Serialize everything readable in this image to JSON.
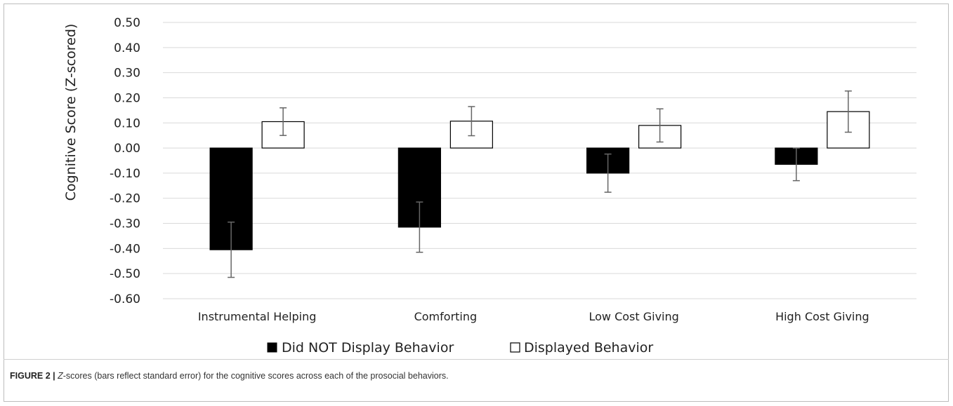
{
  "chart_data": {
    "type": "bar",
    "ylabel": "Cognitive Score (Z-scored)",
    "xlabel": "",
    "ylim": [
      -0.6,
      0.5
    ],
    "yticks": [
      "0.50",
      "0.40",
      "0.30",
      "0.20",
      "0.10",
      "0.00",
      "-0.10",
      "-0.20",
      "-0.30",
      "-0.40",
      "-0.50",
      "-0.60"
    ],
    "ytick_values": [
      0.5,
      0.4,
      0.3,
      0.2,
      0.1,
      0.0,
      -0.1,
      -0.2,
      -0.3,
      -0.4,
      -0.5,
      -0.6
    ],
    "grid": true,
    "legend_position": "bottom",
    "categories": [
      "Instrumental Helping",
      "Comforting",
      "Low Cost Giving",
      "High Cost Giving"
    ],
    "series": [
      {
        "name": "Did NOT Display Behavior",
        "color": "#000000",
        "values": [
          -0.405,
          -0.315,
          -0.1,
          -0.065
        ],
        "errors": [
          0.11,
          0.1,
          0.076,
          0.065
        ]
      },
      {
        "name": "Displayed Behavior",
        "color": "#ffffff",
        "values": [
          0.105,
          0.107,
          0.09,
          0.145
        ],
        "errors": [
          0.055,
          0.058,
          0.066,
          0.082
        ]
      }
    ]
  },
  "caption": {
    "label": "FIGURE 2 |",
    "z": "Z",
    "text": "-scores (bars reflect standard error) for the cognitive scores across each of the prosocial behaviors."
  }
}
